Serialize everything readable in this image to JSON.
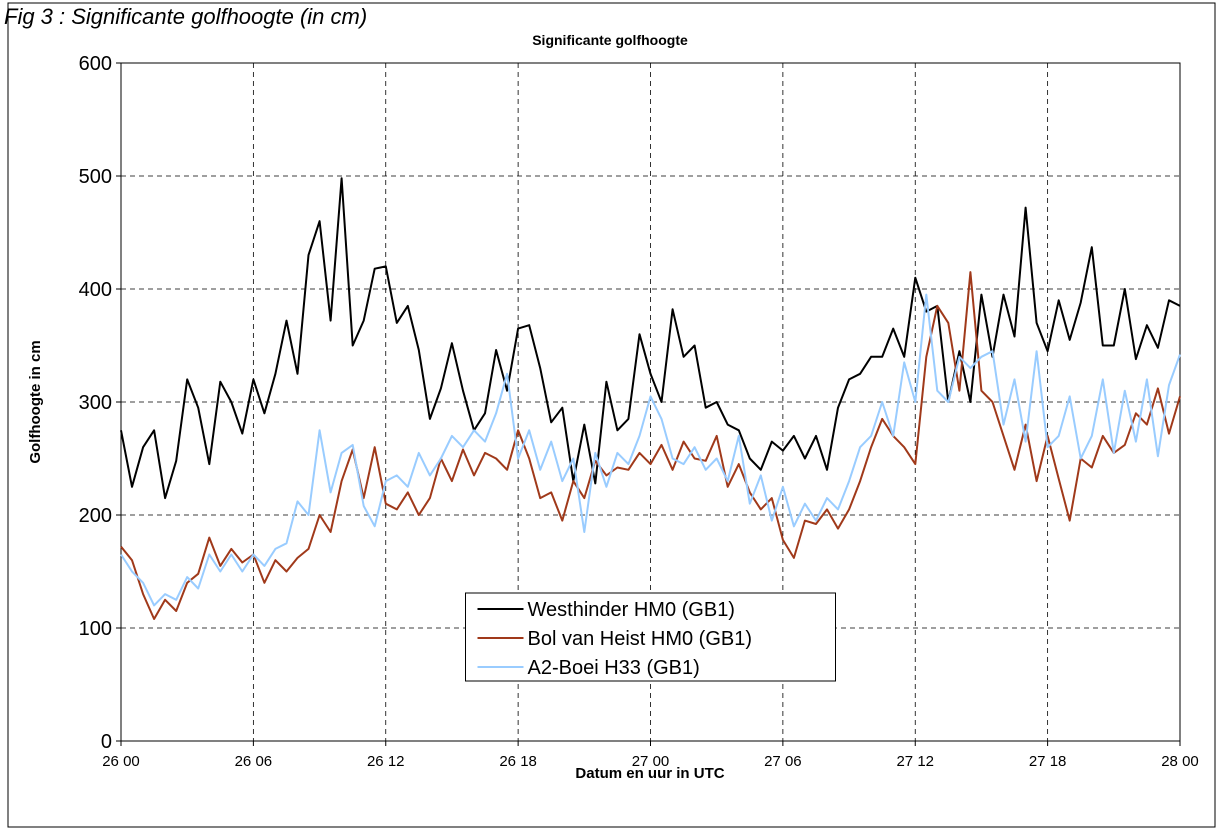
{
  "chart_data": {
    "type": "line",
    "figure_caption": "Fig 3 : Significante golfhoogte (in cm)",
    "title": "Significante golfhoogte",
    "xlabel": "Datum en uur in UTC",
    "ylabel": "Golfhoogte in cm",
    "xlim": [
      0,
      48
    ],
    "xticks": [
      {
        "value": 0,
        "label": "26 00"
      },
      {
        "value": 6,
        "label": "26 06"
      },
      {
        "value": 12,
        "label": "26 12"
      },
      {
        "value": 18,
        "label": "26 18"
      },
      {
        "value": 24,
        "label": "27 00"
      },
      {
        "value": 30,
        "label": "27 06"
      },
      {
        "value": 36,
        "label": "27 12"
      },
      {
        "value": 42,
        "label": "27 18"
      },
      {
        "value": 48,
        "label": "28 00"
      }
    ],
    "ylim": [
      0,
      600
    ],
    "yticks": [
      0,
      100,
      200,
      300,
      400,
      500,
      600
    ],
    "grid": true,
    "legend": "lower center",
    "x": [
      0,
      0.5,
      1,
      1.5,
      2,
      2.5,
      3,
      3.5,
      4,
      4.5,
      5,
      5.5,
      6,
      6.5,
      7,
      7.5,
      8,
      8.5,
      9,
      9.5,
      10,
      10.5,
      11,
      11.5,
      12,
      12.5,
      13,
      13.5,
      14,
      14.5,
      15,
      15.5,
      16,
      16.5,
      17,
      17.5,
      18,
      18.5,
      19,
      19.5,
      20,
      20.5,
      21,
      21.5,
      22,
      22.5,
      23,
      23.5,
      24,
      24.5,
      25,
      25.5,
      26,
      26.5,
      27,
      27.5,
      28,
      28.5,
      29,
      29.5,
      30,
      30.5,
      31,
      31.5,
      32,
      32.5,
      33,
      33.5,
      34,
      34.5,
      35,
      35.5,
      36,
      36.5,
      37,
      37.5,
      38,
      38.5,
      39,
      39.5,
      40,
      40.5,
      41,
      41.5,
      42,
      42.5,
      43,
      43.5,
      44,
      44.5,
      45,
      45.5,
      46,
      46.5,
      47,
      47.5,
      48
    ],
    "series": [
      {
        "name": "Westhinder HM0 (GB1)",
        "color": "#000000",
        "values": [
          275,
          225,
          260,
          275,
          215,
          248,
          320,
          295,
          245,
          318,
          300,
          272,
          320,
          290,
          325,
          372,
          325,
          430,
          460,
          372,
          498,
          350,
          372,
          418,
          420,
          370,
          385,
          346,
          285,
          312,
          352,
          310,
          275,
          290,
          346,
          310,
          365,
          368,
          330,
          282,
          295,
          230,
          280,
          228,
          318,
          275,
          285,
          360,
          325,
          300,
          382,
          340,
          350,
          295,
          300,
          280,
          275,
          250,
          240,
          265,
          257,
          270,
          250,
          270,
          240,
          295,
          320,
          325,
          340,
          340,
          365,
          340,
          410,
          380,
          385,
          300,
          345,
          300,
          395,
          340,
          395,
          358,
          472,
          370,
          345,
          390,
          355,
          388,
          437,
          350,
          350,
          400,
          338,
          368,
          348,
          390,
          385
        ]
      },
      {
        "name": "Bol van Heist HM0 (GB1)",
        "color": "#a0391a",
        "values": [
          172,
          160,
          130,
          108,
          125,
          115,
          140,
          148,
          180,
          155,
          170,
          158,
          165,
          140,
          160,
          150,
          162,
          170,
          200,
          185,
          230,
          258,
          215,
          260,
          210,
          205,
          220,
          200,
          215,
          250,
          230,
          258,
          235,
          255,
          250,
          240,
          275,
          250,
          215,
          220,
          195,
          230,
          215,
          248,
          235,
          242,
          240,
          255,
          245,
          262,
          240,
          265,
          250,
          248,
          270,
          225,
          245,
          220,
          205,
          215,
          178,
          162,
          195,
          192,
          205,
          188,
          205,
          230,
          260,
          285,
          270,
          260,
          245,
          340,
          385,
          370,
          310,
          415,
          310,
          300,
          270,
          240,
          280,
          230,
          270,
          232,
          195,
          250,
          242,
          270,
          255,
          262,
          290,
          280,
          312,
          272,
          305
        ]
      },
      {
        "name": "A2-Boei H33 (GB1)",
        "color": "#99ccff",
        "values": [
          165,
          150,
          140,
          120,
          130,
          125,
          145,
          135,
          165,
          150,
          165,
          150,
          165,
          155,
          170,
          175,
          212,
          200,
          275,
          220,
          255,
          262,
          208,
          190,
          230,
          235,
          225,
          255,
          235,
          250,
          270,
          260,
          275,
          265,
          290,
          325,
          250,
          275,
          240,
          265,
          230,
          250,
          185,
          255,
          225,
          255,
          245,
          270,
          305,
          285,
          250,
          245,
          260,
          240,
          250,
          230,
          270,
          210,
          235,
          195,
          225,
          190,
          210,
          195,
          215,
          205,
          230,
          260,
          270,
          300,
          270,
          335,
          300,
          395,
          310,
          300,
          340,
          330,
          340,
          345,
          280,
          320,
          265,
          345,
          260,
          270,
          305,
          250,
          270,
          320,
          255,
          310,
          265,
          320,
          252,
          315,
          342
        ]
      }
    ]
  }
}
